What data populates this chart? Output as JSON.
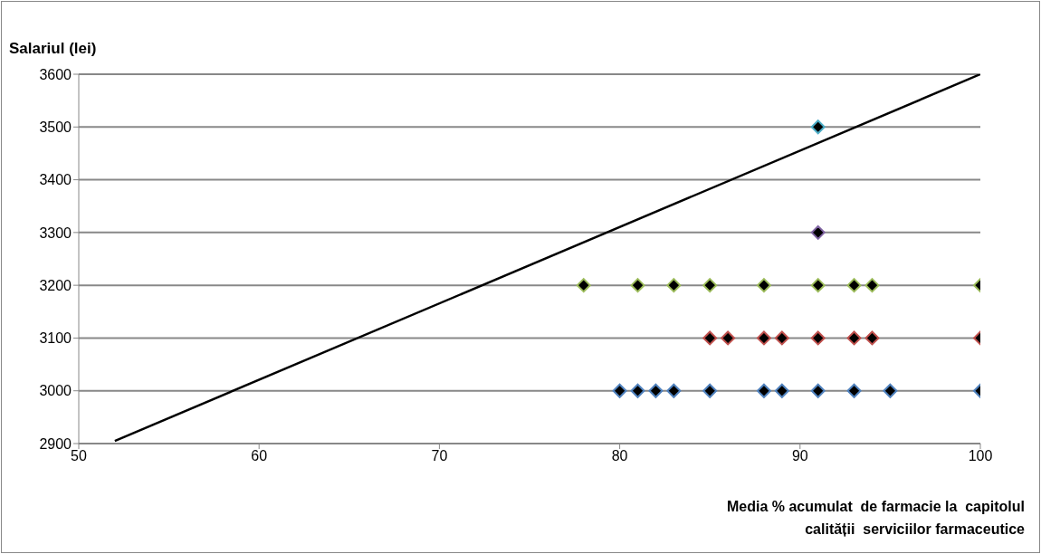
{
  "chart_data": {
    "type": "scatter",
    "ylabel": "Salariul (lei)",
    "xlabel": "Media % acumulat  de farmacie la  capitolul\ncalității  serviciilor farmaceutice",
    "xlim": [
      50,
      100
    ],
    "xticks": [
      50,
      60,
      70,
      80,
      90,
      100
    ],
    "ylim": [
      2900,
      3600
    ],
    "yticks": [
      2900,
      3000,
      3100,
      3200,
      3300,
      3400,
      3500,
      3600
    ],
    "grid": "y",
    "marker": "diamond",
    "series": [
      {
        "color": "#4f81bd",
        "x": [
          80,
          81,
          82,
          83,
          85,
          88,
          89,
          91,
          93,
          95,
          100
        ],
        "values": [
          3000,
          3000,
          3000,
          3000,
          3000,
          3000,
          3000,
          3000,
          3000,
          3000,
          3000
        ]
      },
      {
        "color": "#c0504d",
        "x": [
          85,
          86,
          88,
          89,
          91,
          93,
          94,
          100
        ],
        "values": [
          3100,
          3100,
          3100,
          3100,
          3100,
          3100,
          3100,
          3100
        ]
      },
      {
        "color": "#9bbb59",
        "x": [
          78,
          81,
          83,
          85,
          88,
          91,
          93,
          94,
          100
        ],
        "values": [
          3200,
          3200,
          3200,
          3200,
          3200,
          3200,
          3200,
          3200,
          3200
        ]
      },
      {
        "color": "#8064a2",
        "x": [
          91
        ],
        "values": [
          3300
        ]
      },
      {
        "color": "#4bacc6",
        "x": [
          91
        ],
        "values": [
          3500
        ]
      },
      {
        "type": "line",
        "color": "#000000",
        "marker": "none",
        "x": [
          52,
          100
        ],
        "values": [
          2905,
          3600
        ]
      }
    ]
  }
}
